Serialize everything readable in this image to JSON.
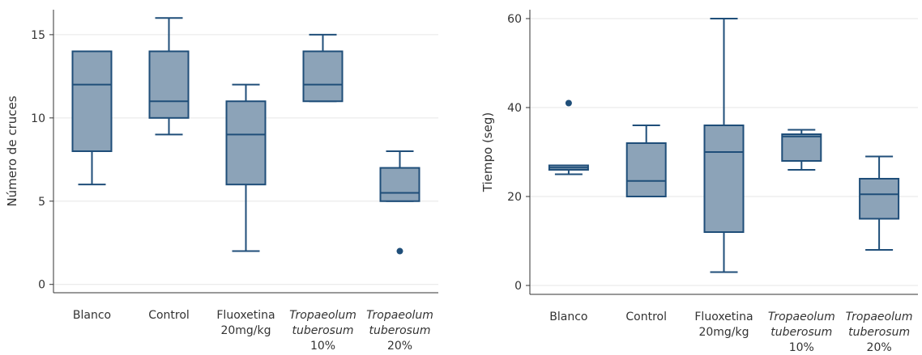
{
  "chart_data": [
    {
      "type": "box",
      "ylabel": "Número de cruces",
      "xlabel": "",
      "ylim": [
        -0.5,
        16.5
      ],
      "yticks": [
        0,
        5,
        10,
        15
      ],
      "grid": "horizontal",
      "box_color": "#8CA3B8",
      "line_color": "#1F4E79",
      "categories": [
        {
          "lines": [
            "Blanco"
          ],
          "italic": false
        },
        {
          "lines": [
            "Control"
          ],
          "italic": false
        },
        {
          "lines": [
            "Fluoxetina",
            "20mg/kg"
          ],
          "italic": false
        },
        {
          "lines": [
            "Tropaeolum",
            "tuberosum",
            "10%"
          ],
          "italic_lines": 2
        },
        {
          "lines": [
            "Tropaeolum",
            "tuberosum",
            "20%"
          ],
          "italic_lines": 2
        }
      ],
      "boxes": [
        {
          "whisker_low": 6,
          "q1": 8,
          "median": 12,
          "q3": 14,
          "whisker_high": 14,
          "outliers": []
        },
        {
          "whisker_low": 9,
          "q1": 10,
          "median": 11,
          "q3": 14,
          "whisker_high": 16,
          "outliers": []
        },
        {
          "whisker_low": 2,
          "q1": 6,
          "median": 9,
          "q3": 11,
          "whisker_high": 12,
          "outliers": []
        },
        {
          "whisker_low": 11,
          "q1": 11,
          "median": 12,
          "q3": 14,
          "whisker_high": 15,
          "outliers": []
        },
        {
          "whisker_low": 5,
          "q1": 5,
          "median": 5.5,
          "q3": 7,
          "whisker_high": 8,
          "outliers": [
            2
          ]
        }
      ]
    },
    {
      "type": "box",
      "ylabel": "Tiempo (seg)",
      "xlabel": "",
      "ylim": [
        -2,
        62
      ],
      "yticks": [
        0,
        20,
        40,
        60
      ],
      "grid": "horizontal",
      "box_color": "#8CA3B8",
      "line_color": "#1F4E79",
      "categories": [
        {
          "lines": [
            "Blanco"
          ],
          "italic": false
        },
        {
          "lines": [
            "Control"
          ],
          "italic": false
        },
        {
          "lines": [
            "Fluoxetina",
            "20mg/kg"
          ],
          "italic": false
        },
        {
          "lines": [
            "Tropaeolum",
            "tuberosum",
            "10%"
          ],
          "italic_lines": 2
        },
        {
          "lines": [
            "Tropaeolum",
            "tuberosum",
            "20%"
          ],
          "italic_lines": 2
        }
      ],
      "boxes": [
        {
          "whisker_low": 25,
          "q1": 26,
          "median": 26.5,
          "q3": 27,
          "whisker_high": 27,
          "outliers": [
            41
          ]
        },
        {
          "whisker_low": 20,
          "q1": 20,
          "median": 23.5,
          "q3": 32,
          "whisker_high": 36,
          "outliers": []
        },
        {
          "whisker_low": 3,
          "q1": 12,
          "median": 30,
          "q3": 36,
          "whisker_high": 60,
          "outliers": []
        },
        {
          "whisker_low": 26,
          "q1": 28,
          "median": 33.5,
          "q3": 34,
          "whisker_high": 35,
          "outliers": []
        },
        {
          "whisker_low": 8,
          "q1": 15,
          "median": 20.5,
          "q3": 24,
          "whisker_high": 29,
          "outliers": []
        }
      ]
    }
  ]
}
